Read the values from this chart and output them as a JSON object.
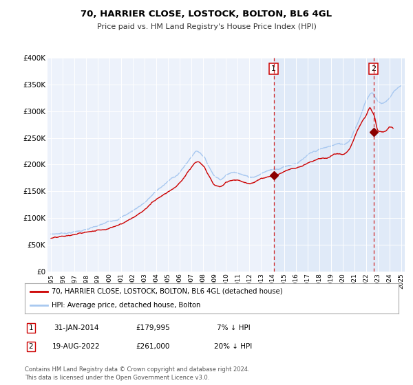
{
  "title": "70, HARRIER CLOSE, LOSTOCK, BOLTON, BL6 4GL",
  "subtitle": "Price paid vs. HM Land Registry's House Price Index (HPI)",
  "hpi_color": "#a8c8f0",
  "price_color": "#cc0000",
  "marker_color": "#8b0000",
  "vline_color": "#cc0000",
  "background_color": "#edf2fb",
  "highlight_bg": "#ddeeff",
  "plot_bg": "#edf2fb",
  "ylim": [
    0,
    400000
  ],
  "yticks": [
    0,
    50000,
    100000,
    150000,
    200000,
    250000,
    300000,
    350000,
    400000
  ],
  "ytick_labels": [
    "£0",
    "£50K",
    "£100K",
    "£150K",
    "£200K",
    "£250K",
    "£300K",
    "£350K",
    "£400K"
  ],
  "xlim_start": 1994.7,
  "xlim_end": 2025.3,
  "sale1_x": 2014.08,
  "sale1_y": 179995,
  "sale2_x": 2022.63,
  "sale2_y": 261000,
  "legend_line1": "70, HARRIER CLOSE, LOSTOCK, BOLTON, BL6 4GL (detached house)",
  "legend_line2": "HPI: Average price, detached house, Bolton",
  "table_row1": [
    "1",
    "31-JAN-2014",
    "£179,995",
    "7% ↓ HPI"
  ],
  "table_row2": [
    "2",
    "19-AUG-2022",
    "£261,000",
    "20% ↓ HPI"
  ],
  "footer1": "Contains HM Land Registry data © Crown copyright and database right 2024.",
  "footer2": "This data is licensed under the Open Government Licence v3.0."
}
